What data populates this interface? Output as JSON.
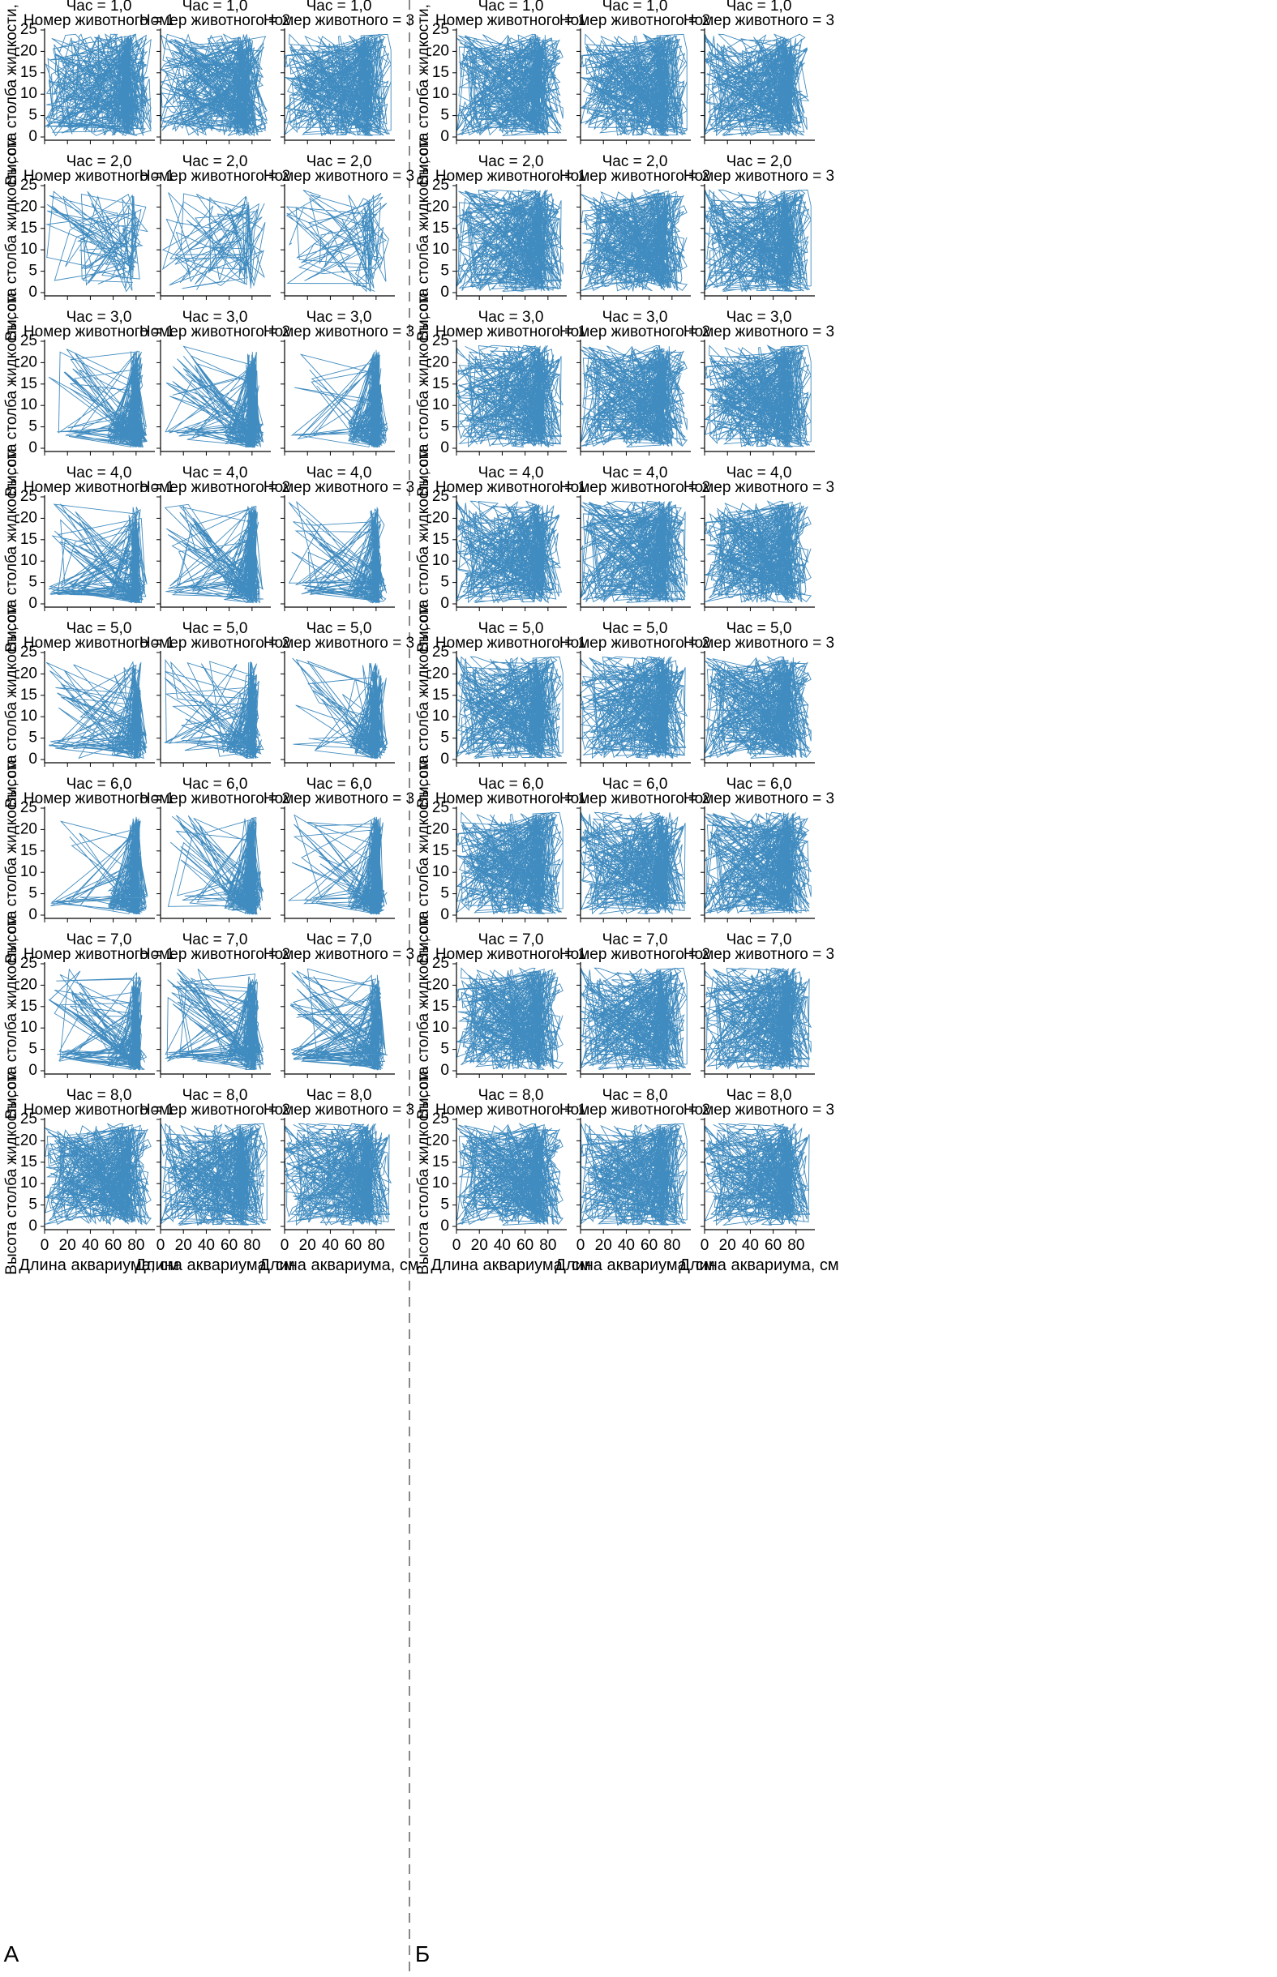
{
  "labels": {
    "xlabel": "Длина аквариума, см",
    "ylabel": "Высота столба жидкости, см",
    "panel_left": "А",
    "panel_right": "Б",
    "hour_prefix": "Час = ",
    "animal_prefix": "Номер животного = "
  },
  "colors": {
    "line": "#1f77b4",
    "divider": "#888888"
  },
  "chart_data": {
    "type": "line",
    "description_kind": "trajectory small multiples",
    "xlabel": "Длина аквариума, см",
    "ylabel": "Высота столба жидкости, см",
    "xlim": [
      0,
      95
    ],
    "ylim": [
      0,
      25
    ],
    "xticks": [
      0,
      20,
      40,
      60,
      80
    ],
    "yticks": [
      0,
      5,
      10,
      15,
      20,
      25
    ],
    "hours": [
      "1,0",
      "2,0",
      "3,0",
      "4,0",
      "5,0",
      "6,0",
      "7,0",
      "8,0"
    ],
    "animals": [
      "1",
      "2",
      "3"
    ],
    "panels": [
      "А",
      "Б"
    ],
    "profiles": {
      "А": [
        "dense",
        "sparse",
        "right",
        "left_fans",
        "sparse_right",
        "right",
        "left_fans",
        "dense"
      ],
      "Б": [
        "dense",
        "dense",
        "dense",
        "dense",
        "dense",
        "dense",
        "dense",
        "dense"
      ]
    }
  }
}
